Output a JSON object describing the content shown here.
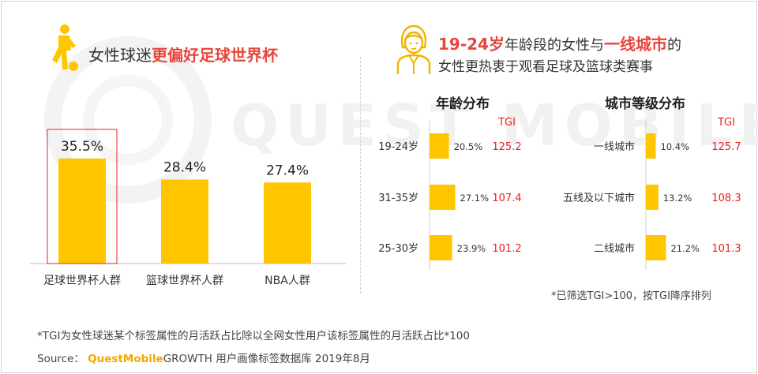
{
  "colors": {
    "bar": "#ffc600",
    "accent_red": "#e8453c",
    "tgi_red": "#e8211d",
    "highlight_box": "#e8211d",
    "brand": "#f0a800"
  },
  "watermark": "QUEST MOBILE",
  "left": {
    "title_prefix": "女性球迷",
    "title_highlight": "更偏好足球世界杯",
    "icon": "soccer-player-icon"
  },
  "right": {
    "icon": "woman-avatar-icon",
    "title_highlight_1": "19-24岁",
    "title_mid": "年龄段的女性与",
    "title_highlight_2": "一线城市",
    "title_end": "的",
    "title_line2": "女性更热衷于观看足球及篮球类赛事"
  },
  "chart_data": [
    {
      "type": "bar",
      "categories": [
        "足球世界杯人群",
        "篮球世界杯人群",
        "NBA人群"
      ],
      "values": [
        35.5,
        28.4,
        27.4
      ],
      "value_labels": [
        "35.5%",
        "28.4%",
        "27.4%"
      ],
      "highlighted": "足球世界杯人群",
      "ylim": [
        0,
        40
      ]
    },
    {
      "type": "bar",
      "orientation": "horizontal",
      "title": "年龄分布",
      "categories": [
        "19-24岁",
        "31-35岁",
        "25-30岁"
      ],
      "values": [
        20.5,
        27.1,
        23.9
      ],
      "value_labels": [
        "20.5%",
        "27.1%",
        "23.9%"
      ],
      "tgi_header": "TGI",
      "tgi": [
        "125.2",
        "107.4",
        "101.2"
      ]
    },
    {
      "type": "bar",
      "orientation": "horizontal",
      "title": "城市等级分布",
      "categories": [
        "一线城市",
        "五线及以下城市",
        "二线城市"
      ],
      "values": [
        10.4,
        13.2,
        21.2
      ],
      "value_labels": [
        "10.4%",
        "13.2%",
        "21.2%"
      ],
      "tgi_header": "TGI",
      "tgi": [
        "125.7",
        "108.3",
        "101.3"
      ]
    }
  ],
  "tgi_note": "*已筛选TGI>100，按TGI降序排列",
  "footnote": "*TGI为女性球迷某个标签属性的月活跃占比除以全网女性用户该标签属性的月活跃占比*100",
  "source": {
    "label": "Source：",
    "brand": "QuestMobile",
    "text": "GROWTH 用户画像标签数据库 2019年8月"
  }
}
